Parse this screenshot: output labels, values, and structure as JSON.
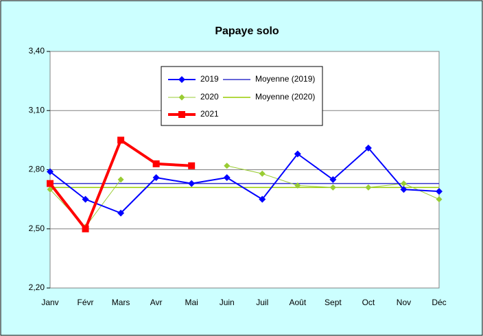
{
  "chart_data": {
    "type": "line",
    "title": "Papaye solo",
    "categories": [
      "Janv",
      "Févr",
      "Mars",
      "Avr",
      "Mai",
      "Juin",
      "Juil",
      "Août",
      "Sept",
      "Oct",
      "Nov",
      "Déc"
    ],
    "series": [
      {
        "name": "2019",
        "color": "#0000ff",
        "values": [
          2.79,
          2.65,
          2.58,
          2.76,
          2.73,
          2.76,
          2.65,
          2.88,
          2.75,
          2.91,
          2.7,
          2.69
        ]
      },
      {
        "name": "2020",
        "color": "#99cc33",
        "values": [
          2.7,
          2.51,
          2.75,
          null,
          null,
          2.82,
          2.78,
          2.72,
          2.71,
          2.71,
          2.73,
          2.65
        ]
      },
      {
        "name": "2021",
        "color": "#ff0000",
        "values": [
          2.73,
          2.5,
          2.95,
          2.83,
          2.82,
          null,
          null,
          null,
          null,
          null,
          null,
          null
        ]
      }
    ],
    "averages": [
      {
        "name": "Moyenne (2019)",
        "color": "#3333cc",
        "value": 2.73
      },
      {
        "name": "Moyenne (2020)",
        "color": "#99cc00",
        "value": 2.71
      }
    ],
    "ylim": [
      2.2,
      3.4
    ],
    "yticks": [
      {
        "value": 2.2,
        "label": "2,20"
      },
      {
        "value": 2.5,
        "label": "2,50"
      },
      {
        "value": 2.8,
        "label": "2,80"
      },
      {
        "value": 3.1,
        "label": "3,10"
      },
      {
        "value": 3.4,
        "label": "3,40"
      }
    ],
    "grid": true
  }
}
